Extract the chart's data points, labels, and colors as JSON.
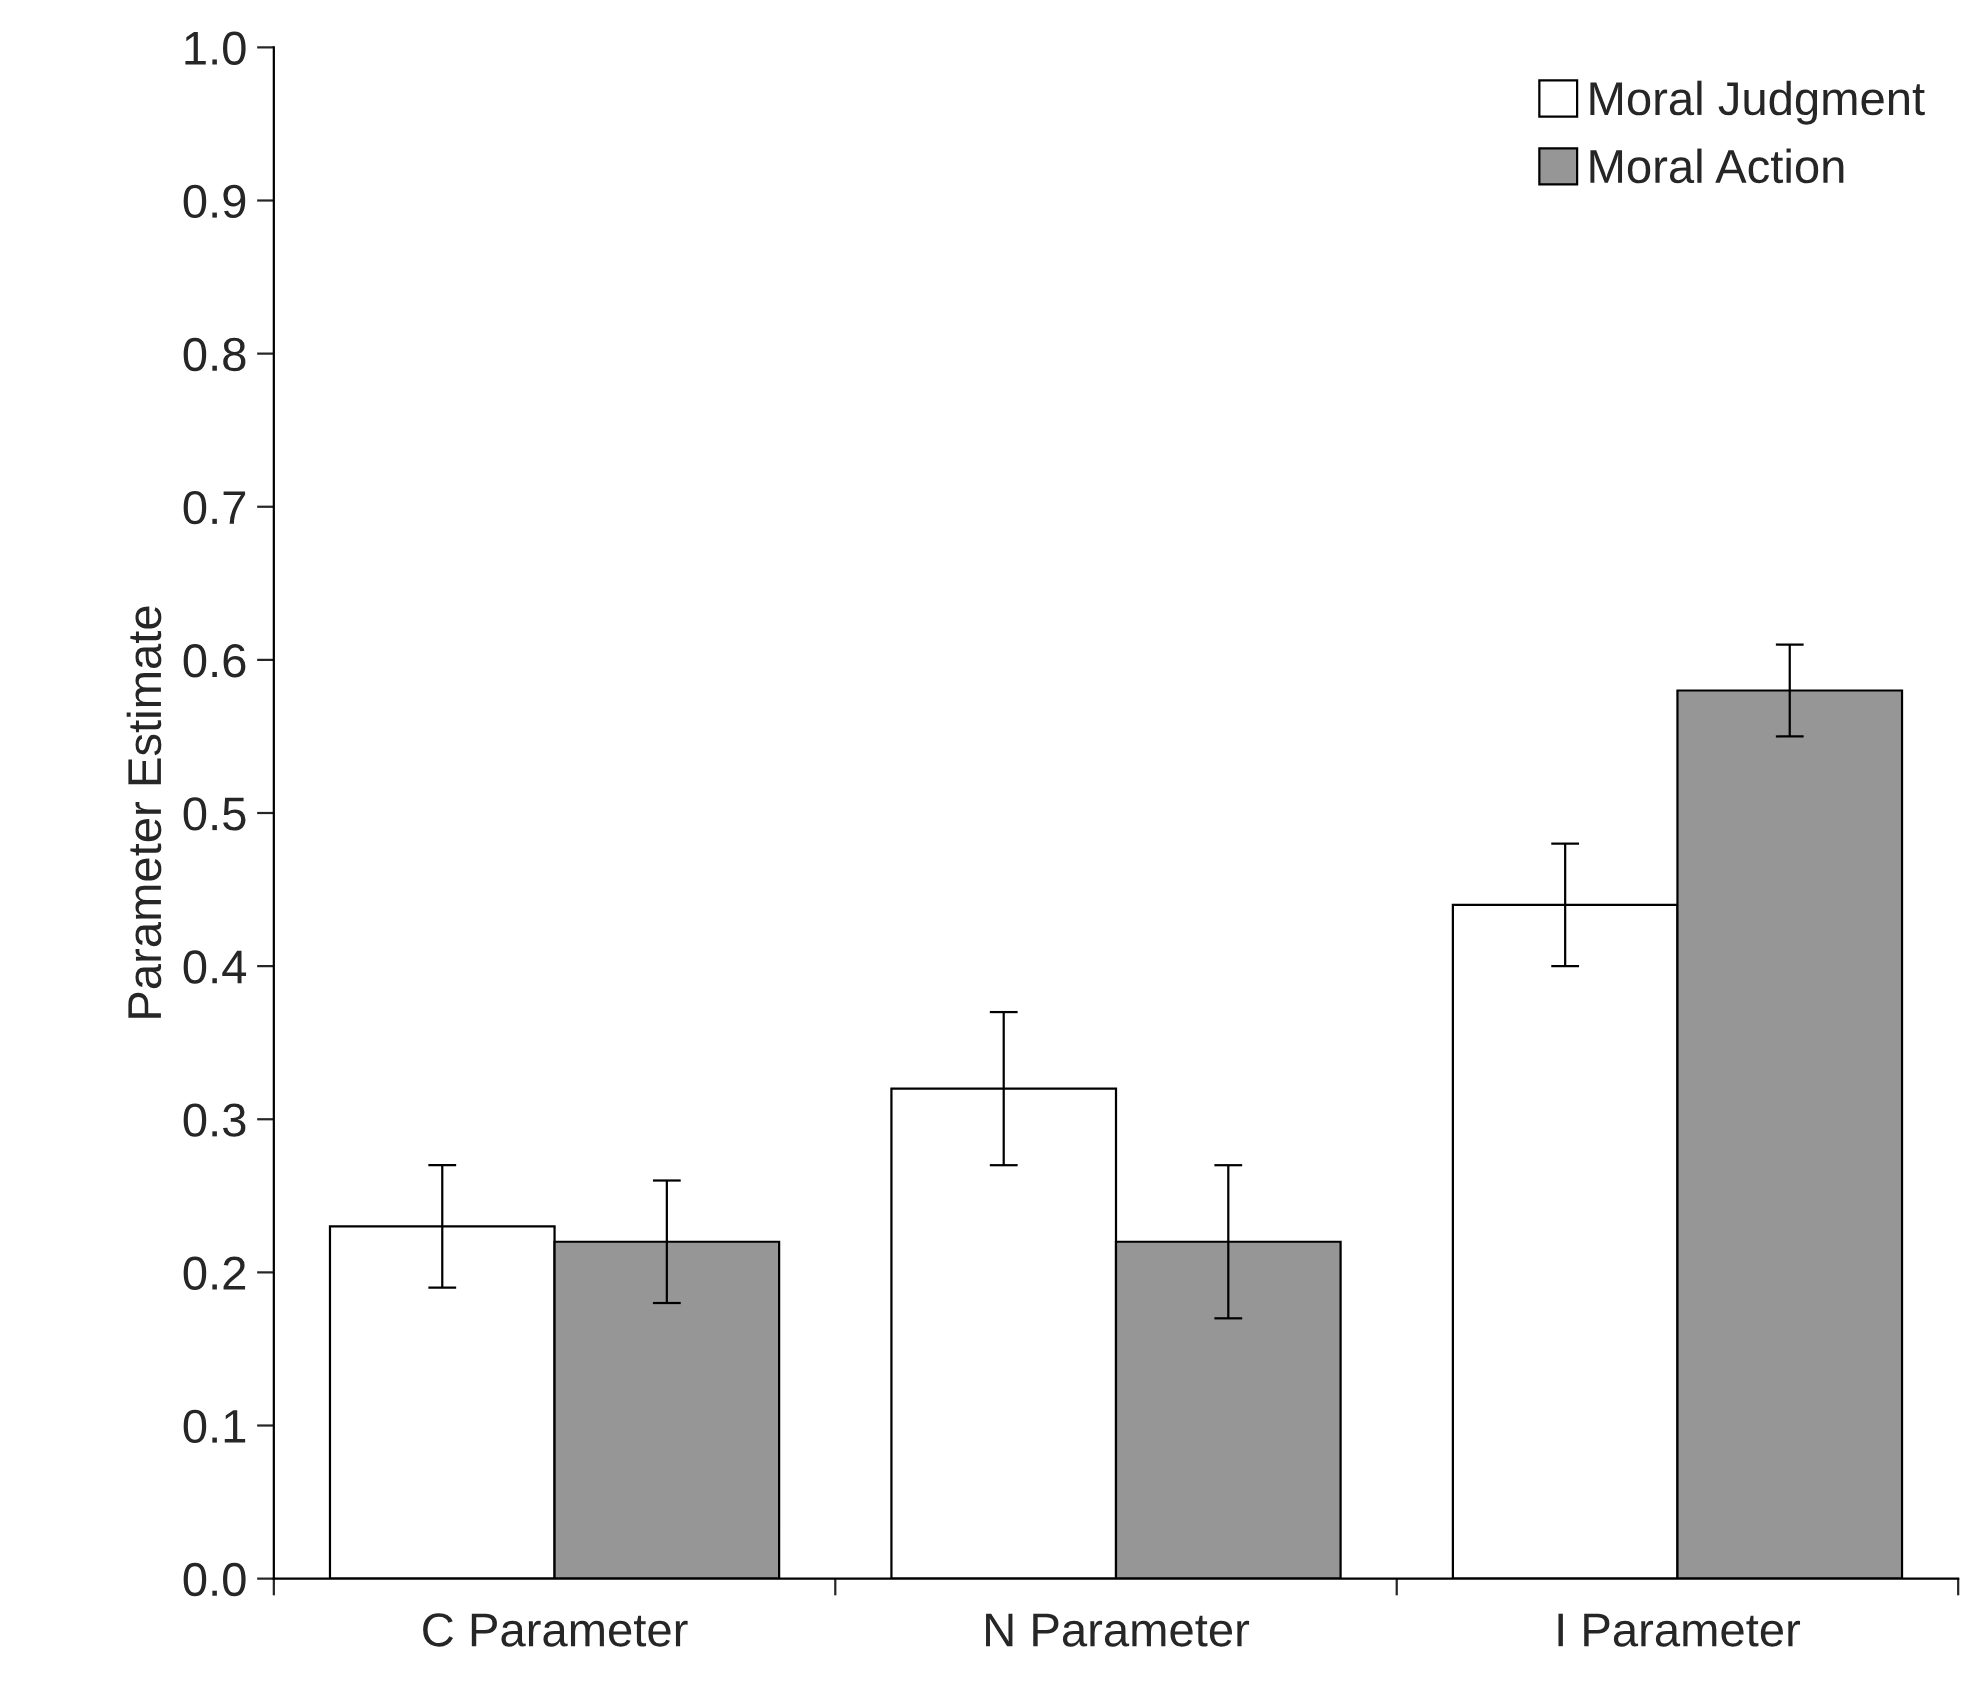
{
  "chart_data": {
    "type": "bar",
    "ylabel": "Parameter Estimate",
    "categories": [
      "C Parameter",
      "N Parameter",
      "I Parameter"
    ],
    "series": [
      {
        "name": "Moral Judgment",
        "color": "#ffffff",
        "values": [
          0.23,
          0.32,
          0.44
        ],
        "errors": [
          0.04,
          0.05,
          0.04
        ]
      },
      {
        "name": "Moral Action",
        "color": "#969696",
        "values": [
          0.22,
          0.22,
          0.58
        ],
        "errors": [
          0.04,
          0.05,
          0.03
        ]
      }
    ],
    "ylim": [
      0,
      1.0
    ],
    "yticks": [
      {
        "value": 0,
        "label": "0.0"
      },
      0.1,
      0.2,
      0.3,
      0.4,
      0.5,
      0.6,
      0.7,
      0.8,
      0.9,
      {
        "value": 1.0,
        "label": "1.0"
      }
    ],
    "grid": false,
    "legend": "top right"
  }
}
